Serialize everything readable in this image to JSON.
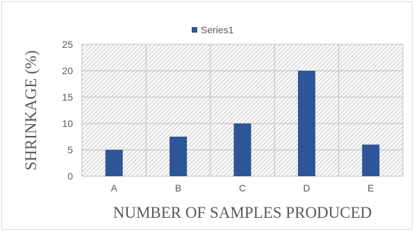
{
  "chart_data": {
    "type": "bar",
    "categories": [
      "A",
      "B",
      "C",
      "D",
      "E"
    ],
    "series": [
      {
        "name": "Series1",
        "values": [
          5,
          7.5,
          10,
          20,
          6
        ],
        "color": "#2e5597"
      }
    ],
    "ylim": [
      0,
      25
    ],
    "yticks": [
      "0",
      "5",
      "10",
      "15",
      "20",
      "25"
    ],
    "xlabel": "NUMBER OF SAMPLES PRODUCED",
    "ylabel": "SHRINKAGE (%)",
    "grid": true,
    "legend_position": "top",
    "plot_fill": "diagonal-hatch"
  }
}
